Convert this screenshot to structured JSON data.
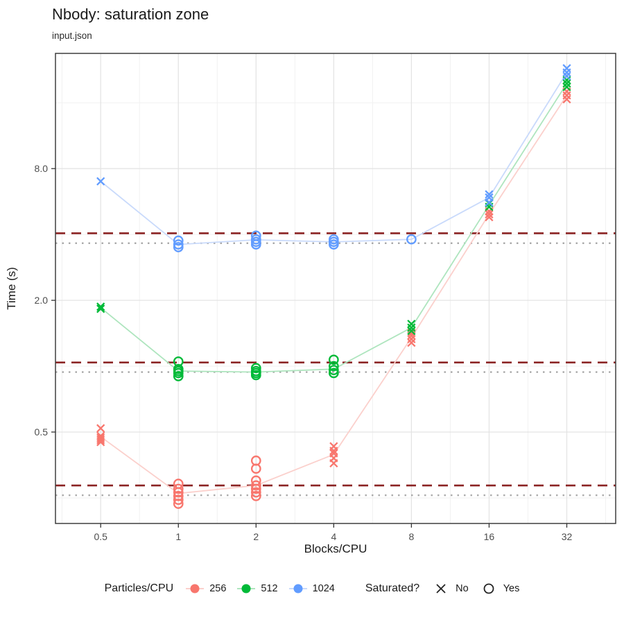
{
  "title": "Nbody: saturation zone",
  "subtitle": "input.json",
  "chart_data": {
    "type": "scatter",
    "title": "Nbody: saturation zone",
    "subtitle": "input.json",
    "xlabel": "Blocks/CPU",
    "ylabel": "Time (s)",
    "x_scale": "log2",
    "y_scale": "log",
    "x_domain": [
      0.334,
      49.5
    ],
    "y_domain": [
      0.191,
      26.9
    ],
    "x_ticks": [
      0.5,
      1,
      2,
      4,
      8,
      16,
      32
    ],
    "x_tick_labels": [
      "0.5",
      "1",
      "2",
      "4",
      "8",
      "16",
      "32"
    ],
    "x_minor": [
      0.354,
      0.707,
      1.414,
      2.828,
      5.657,
      11.314,
      22.627,
      45.255
    ],
    "y_ticks": [
      0.5,
      2.0,
      8.0
    ],
    "y_tick_labels": [
      "0.5",
      "2.0",
      "8.0"
    ],
    "y_minor": [
      0.25,
      1.0,
      4.0,
      16.0
    ],
    "grid": true,
    "legend_position": "bottom",
    "hlines_dashed": {
      "color": "#8B2323",
      "values": [
        4.05,
        1.04,
        0.285
      ]
    },
    "hlines_dotted": {
      "color": "#A3A3A3",
      "values": [
        3.65,
        0.94,
        0.257
      ]
    },
    "series": [
      {
        "name": "256",
        "color": "#F8766D",
        "line_color": "#FBD0CC",
        "line_x": [
          0.5,
          1,
          2,
          4,
          8,
          16,
          32
        ],
        "line_y": [
          0.476,
          0.262,
          0.285,
          0.395,
          1.35,
          4.95,
          17.3
        ],
        "points": [
          [
            0.5,
            0.52,
            "x"
          ],
          [
            0.5,
            0.48,
            "x"
          ],
          [
            0.5,
            0.47,
            "x"
          ],
          [
            0.5,
            0.46,
            "x"
          ],
          [
            0.5,
            0.45,
            "x"
          ],
          [
            1,
            0.29,
            "o"
          ],
          [
            1,
            0.275,
            "o"
          ],
          [
            1,
            0.265,
            "o"
          ],
          [
            1,
            0.255,
            "o"
          ],
          [
            1,
            0.245,
            "o"
          ],
          [
            1,
            0.235,
            "o"
          ],
          [
            2,
            0.37,
            "o"
          ],
          [
            2,
            0.34,
            "o"
          ],
          [
            2,
            0.3,
            "o"
          ],
          [
            2,
            0.285,
            "o"
          ],
          [
            2,
            0.275,
            "o"
          ],
          [
            2,
            0.265,
            "o"
          ],
          [
            2,
            0.255,
            "o"
          ],
          [
            4,
            0.43,
            "x"
          ],
          [
            4,
            0.41,
            "x"
          ],
          [
            4,
            0.4,
            "x"
          ],
          [
            4,
            0.38,
            "x"
          ],
          [
            4,
            0.36,
            "x"
          ],
          [
            8,
            1.42,
            "x"
          ],
          [
            8,
            1.38,
            "x"
          ],
          [
            8,
            1.33,
            "x"
          ],
          [
            8,
            1.28,
            "x"
          ],
          [
            16,
            5.1,
            "x"
          ],
          [
            16,
            4.95,
            "x"
          ],
          [
            16,
            4.8,
            "x"
          ],
          [
            32,
            18.0,
            "x"
          ],
          [
            32,
            17.3,
            "x"
          ],
          [
            32,
            16.6,
            "x"
          ]
        ]
      },
      {
        "name": "512",
        "color": "#00BA38",
        "line_color": "#AEE5BE",
        "line_x": [
          0.5,
          1,
          2,
          4,
          8,
          16,
          32
        ],
        "line_y": [
          1.85,
          0.95,
          0.94,
          0.97,
          1.5,
          5.45,
          19.6
        ],
        "points": [
          [
            0.5,
            1.87,
            "x"
          ],
          [
            0.5,
            1.83,
            "x"
          ],
          [
            1,
            1.05,
            "o"
          ],
          [
            1,
            0.97,
            "o"
          ],
          [
            1,
            0.95,
            "o"
          ],
          [
            1,
            0.93,
            "o"
          ],
          [
            1,
            0.9,
            "o"
          ],
          [
            2,
            0.98,
            "o"
          ],
          [
            2,
            0.95,
            "o"
          ],
          [
            2,
            0.93,
            "o"
          ],
          [
            2,
            0.91,
            "o"
          ],
          [
            4,
            1.07,
            "o"
          ],
          [
            4,
            1.0,
            "o"
          ],
          [
            4,
            0.96,
            "o"
          ],
          [
            4,
            0.93,
            "o"
          ],
          [
            8,
            1.56,
            "x"
          ],
          [
            8,
            1.5,
            "x"
          ],
          [
            8,
            1.45,
            "x"
          ],
          [
            16,
            5.55,
            "x"
          ],
          [
            16,
            5.35,
            "x"
          ],
          [
            32,
            20.3,
            "x"
          ],
          [
            32,
            19.6,
            "x"
          ],
          [
            32,
            18.9,
            "x"
          ]
        ]
      },
      {
        "name": "1024",
        "color": "#619CFF",
        "line_color": "#C9DAFB",
        "line_x": [
          0.5,
          1,
          2,
          4,
          8,
          16,
          32
        ],
        "line_y": [
          7.0,
          3.6,
          3.78,
          3.7,
          3.8,
          5.9,
          22.0
        ],
        "points": [
          [
            0.5,
            7.0,
            "x"
          ],
          [
            1,
            3.75,
            "o"
          ],
          [
            1,
            3.6,
            "o"
          ],
          [
            1,
            3.5,
            "o"
          ],
          [
            2,
            3.95,
            "o"
          ],
          [
            2,
            3.8,
            "o"
          ],
          [
            2,
            3.7,
            "o"
          ],
          [
            2,
            3.6,
            "o"
          ],
          [
            4,
            3.8,
            "o"
          ],
          [
            4,
            3.7,
            "o"
          ],
          [
            4,
            3.6,
            "o"
          ],
          [
            8,
            3.8,
            "o"
          ],
          [
            16,
            6.1,
            "x"
          ],
          [
            16,
            5.9,
            "x"
          ],
          [
            16,
            5.6,
            "x"
          ],
          [
            32,
            23.0,
            "x"
          ],
          [
            32,
            22.0,
            "x"
          ],
          [
            32,
            21.2,
            "x"
          ]
        ]
      }
    ]
  },
  "legend": {
    "series_title": "Particles/CPU",
    "series_items": [
      {
        "label": "256",
        "color": "#F8766D",
        "line_color": "#FBD0CC"
      },
      {
        "label": "512",
        "color": "#00BA38",
        "line_color": "#AEE5BE"
      },
      {
        "label": "1024",
        "color": "#619CFF",
        "line_color": "#C9DAFB"
      }
    ],
    "shape_title": "Saturated?",
    "shape_items": [
      {
        "label": "No",
        "shape": "x"
      },
      {
        "label": "Yes",
        "shape": "circle"
      }
    ]
  }
}
